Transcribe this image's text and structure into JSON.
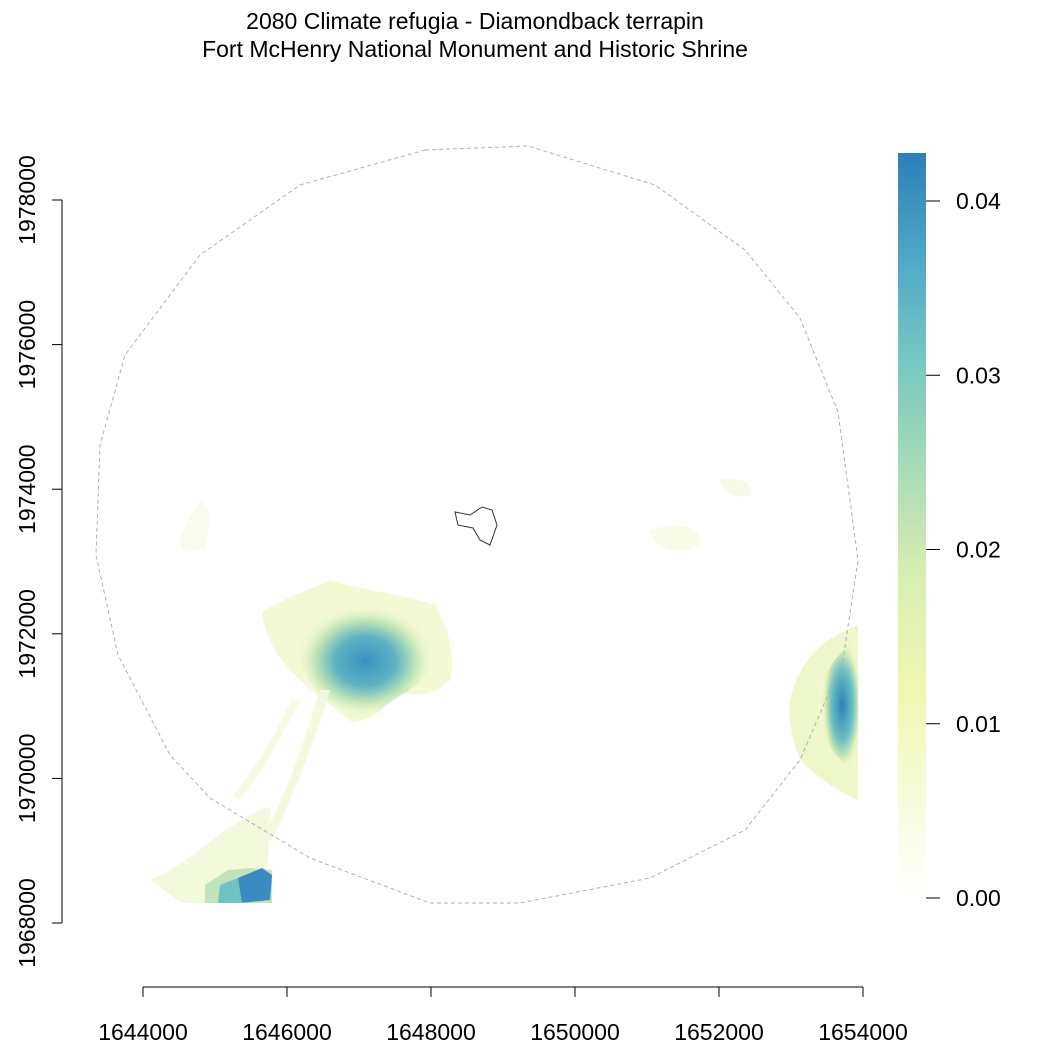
{
  "title": {
    "line1": "2080 Climate refugia - Diamondback terrapin",
    "line2": "Fort McHenry National Monument and Historic Shrine"
  },
  "map": {
    "x_axis": {
      "range": [
        1644000,
        1654000
      ],
      "ticks": [
        "1644000",
        "1646000",
        "1648000",
        "1650000",
        "1652000",
        "1654000"
      ]
    },
    "y_axis": {
      "range": [
        1968000,
        1978000
      ],
      "ticks": [
        "1968000",
        "1970000",
        "1972000",
        "1974000",
        "1976000",
        "1978000"
      ]
    },
    "legend": {
      "placement": "right",
      "range": [
        0.0,
        0.043
      ],
      "ticks": [
        "0.00",
        "0.01",
        "0.02",
        "0.03",
        "0.04"
      ],
      "colors": [
        "#ffffff",
        "#f7fbd6",
        "#eef6b1",
        "#d9efb3",
        "#a9dcb5",
        "#78c9c1",
        "#4fa8c7",
        "#2c7fb8"
      ]
    },
    "colors": {
      "buffer_circle": "#b0b0b0",
      "park_boundary": "#333333"
    }
  }
}
